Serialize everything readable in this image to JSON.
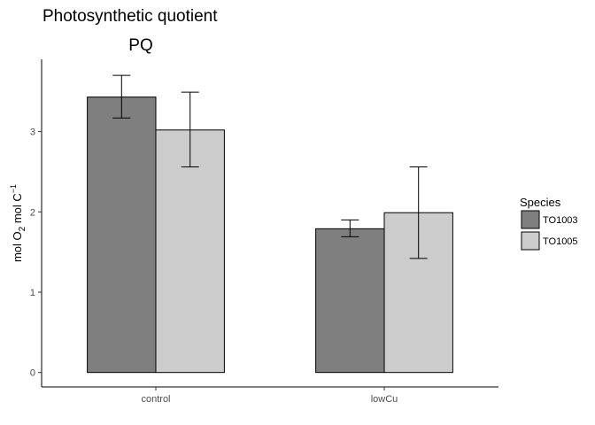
{
  "chart_data": {
    "type": "bar",
    "title": "Photosynthetic quotient",
    "subtitle": "PQ",
    "xlabel": "",
    "ylabel": "mol O2 mol C-1",
    "ylabel_parts": {
      "main1": "mol O",
      "sub": "2",
      "main2": " mol C",
      "sup": "−1"
    },
    "categories": [
      "control",
      "lowCu"
    ],
    "ylim": [
      -0.18,
      3.9
    ],
    "yticks": [
      0,
      1,
      2,
      3
    ],
    "grid": false,
    "legend": {
      "title": "Species",
      "placement": "right"
    },
    "series": [
      {
        "name": "TO1003",
        "color": "#7f7f7f",
        "values": [
          3.43,
          1.79
        ],
        "err_low": [
          3.17,
          1.69
        ],
        "err_high": [
          3.7,
          1.9
        ]
      },
      {
        "name": "TO1005",
        "color": "#cccccc",
        "values": [
          3.02,
          1.99
        ],
        "err_low": [
          2.56,
          1.42
        ],
        "err_high": [
          3.49,
          2.56
        ]
      }
    ]
  }
}
